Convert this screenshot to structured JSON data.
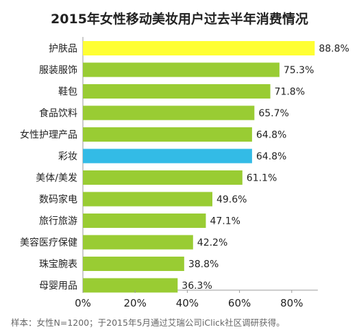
{
  "chart_data": {
    "type": "bar",
    "orientation": "horizontal",
    "title": "2015年女性移动美妆用户过去半年消费情况",
    "categories": [
      "护肤品",
      "服装服饰",
      "鞋包",
      "食品饮料",
      "女性护理产品",
      "彩妆",
      "美体/美发",
      "数码家电",
      "旅行旅游",
      "美容医疗保健",
      "珠宝腕表",
      "母婴用品"
    ],
    "values": [
      88.8,
      75.3,
      71.8,
      65.7,
      64.8,
      64.8,
      61.1,
      49.6,
      47.1,
      42.2,
      38.8,
      36.3
    ],
    "value_labels": [
      "88.8%",
      "75.3%",
      "71.8%",
      "65.7%",
      "64.8%",
      "64.8%",
      "61.1%",
      "49.6%",
      "47.1%",
      "42.2%",
      "38.8%",
      "36.3%"
    ],
    "bar_colors": [
      "#ffff33",
      "#99cc33",
      "#99cc33",
      "#99cc33",
      "#99cc33",
      "#33bbe6",
      "#99cc33",
      "#99cc33",
      "#99cc33",
      "#99cc33",
      "#99cc33",
      "#99cc33"
    ],
    "xlim": [
      0,
      90
    ],
    "xticks": [
      0,
      20,
      40,
      60,
      80
    ],
    "xtick_labels": [
      "0%",
      "20%",
      "40%",
      "60%",
      "80%"
    ],
    "grid": false,
    "xlabel": "",
    "ylabel": ""
  },
  "source_note": "样本：女性N=1200；于2015年5月通过艾瑞公司iClick社区调研获得。"
}
